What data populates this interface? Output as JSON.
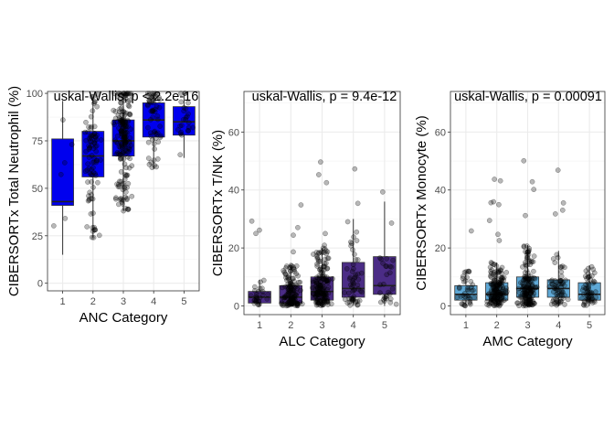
{
  "chart_data": [
    {
      "type": "boxplot",
      "title": "",
      "annotation": "uskal-Wallis, p < 2.2e-16",
      "xlabel": "ANC Category",
      "ylabel": "CIBERSORTx Total Neutrophil (%)",
      "categories": [
        "1",
        "2",
        "3",
        "4",
        "5"
      ],
      "ylim": [
        -4,
        101
      ],
      "yticks": [
        0,
        25,
        50,
        75,
        100
      ],
      "grid": true,
      "box_color": "#0000ee",
      "box_border": "#333333",
      "point_color": "#000000",
      "point_alpha": 0.3,
      "boxes": [
        {
          "category": "1",
          "min": 15,
          "q1": 41,
          "median": 43,
          "q3": 76,
          "max": 96
        },
        {
          "category": "2",
          "min": 24,
          "q1": 56,
          "median": 67,
          "q3": 80,
          "max": 98
        },
        {
          "category": "3",
          "min": 38,
          "q1": 67,
          "median": 75,
          "q3": 86,
          "max": 100
        },
        {
          "category": "4",
          "min": 60,
          "q1": 77,
          "median": 86,
          "q3": 95,
          "max": 100
        },
        {
          "category": "5",
          "min": 66,
          "q1": 78,
          "median": 85,
          "q3": 93,
          "max": 100
        }
      ],
      "point_counts": [
        6,
        90,
        200,
        60,
        25
      ]
    },
    {
      "type": "boxplot",
      "title": "",
      "annotation": "uskal-Wallis, p = 9.4e-12",
      "xlabel": "ALC Category",
      "ylabel": "CIBERSORTx T/NK (%)",
      "categories": [
        "1",
        "2",
        "3",
        "4",
        "5"
      ],
      "ylim": [
        -3,
        74
      ],
      "yticks": [
        0,
        20,
        40,
        60
      ],
      "grid": true,
      "box_color": "#4b2c86",
      "box_border": "#333333",
      "point_color": "#000000",
      "point_alpha": 0.3,
      "boxes": [
        {
          "category": "1",
          "min": 0,
          "q1": 1,
          "median": 3,
          "q3": 5,
          "max": 9
        },
        {
          "category": "2",
          "min": 0,
          "q1": 1,
          "median": 3,
          "q3": 7,
          "max": 14
        },
        {
          "category": "3",
          "min": 0,
          "q1": 2,
          "median": 5,
          "q3": 10,
          "max": 20
        },
        {
          "category": "4",
          "min": 0,
          "q1": 3,
          "median": 6,
          "q3": 15,
          "max": 30
        },
        {
          "category": "5",
          "min": 0,
          "q1": 4,
          "median": 7,
          "q3": 17,
          "max": 36
        }
      ],
      "point_counts": [
        30,
        140,
        170,
        60,
        30
      ]
    },
    {
      "type": "boxplot",
      "title": "",
      "annotation": "uskal-Wallis, p = 0.00091",
      "xlabel": "AMC Category",
      "ylabel": "CIBERSORTx Monocyte (%)",
      "categories": [
        "1",
        "2",
        "3",
        "4",
        "5"
      ],
      "ylim": [
        -3,
        74
      ],
      "yticks": [
        0,
        20,
        40,
        60
      ],
      "grid": true,
      "box_color": "#5ea8d6",
      "box_border": "#333333",
      "point_color": "#000000",
      "point_alpha": 0.3,
      "boxes": [
        {
          "category": "1",
          "min": 0,
          "q1": 2,
          "median": 4,
          "q3": 7,
          "max": 12
        },
        {
          "category": "2",
          "min": 0,
          "q1": 2,
          "median": 4,
          "q3": 8,
          "max": 15
        },
        {
          "category": "3",
          "min": 0,
          "q1": 3,
          "median": 6,
          "q3": 10,
          "max": 21
        },
        {
          "category": "4",
          "min": 0,
          "q1": 3,
          "median": 6,
          "q3": 9,
          "max": 19
        },
        {
          "category": "5",
          "min": 0,
          "q1": 2,
          "median": 4,
          "q3": 8,
          "max": 14
        }
      ],
      "point_counts": [
        40,
        170,
        170,
        70,
        60
      ]
    }
  ]
}
